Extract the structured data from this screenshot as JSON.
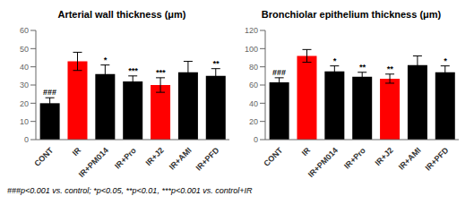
{
  "chart_data": [
    {
      "type": "bar",
      "title": "Arterial wall thickness (μm)",
      "categories": [
        "CONT",
        "IR",
        "IR+PM014",
        "IR+Pro",
        "IR+J2",
        "IR+AMI",
        "IR+PFD"
      ],
      "values": [
        20,
        43,
        36,
        32,
        30,
        37,
        35
      ],
      "errors": [
        3,
        5,
        5,
        3,
        4,
        6,
        4
      ],
      "colors": [
        "black",
        "red",
        "black",
        "black",
        "red",
        "black",
        "black"
      ],
      "ylim": [
        0,
        60
      ],
      "yticks": [
        0,
        10,
        20,
        30,
        40,
        50,
        60
      ],
      "annotations": [
        {
          "category": "CONT",
          "text": "###"
        },
        {
          "category": "IR+PM014",
          "text": "*"
        },
        {
          "category": "IR+Pro",
          "text": "***"
        },
        {
          "category": "IR+J2",
          "text": "***"
        },
        {
          "category": "IR+PFD",
          "text": "**"
        }
      ]
    },
    {
      "type": "bar",
      "title": "Bronchiolar epithelium thickness (μm)",
      "categories": [
        "CONT",
        "IR",
        "IR+PM014",
        "IR+Pro",
        "IR+J2",
        "IR+AMI",
        "IR+PFD"
      ],
      "values": [
        63,
        92,
        75,
        69,
        67,
        82,
        74
      ],
      "errors": [
        5,
        7,
        6,
        5,
        5,
        10,
        7
      ],
      "colors": [
        "black",
        "red",
        "black",
        "black",
        "red",
        "black",
        "black"
      ],
      "ylim": [
        0,
        120
      ],
      "yticks": [
        0,
        20,
        40,
        60,
        80,
        100,
        120
      ],
      "annotations": [
        {
          "category": "CONT",
          "text": "###"
        },
        {
          "category": "IR+PM014",
          "text": "*"
        },
        {
          "category": "IR+Pro",
          "text": "**"
        },
        {
          "category": "IR+J2",
          "text": "**"
        },
        {
          "category": "IR+PFD",
          "text": "*"
        }
      ]
    }
  ],
  "annotation": "###p<0.001 vs. control;   *p<0.05, **p<0.01, ***p<0.001 vs. control+IR"
}
